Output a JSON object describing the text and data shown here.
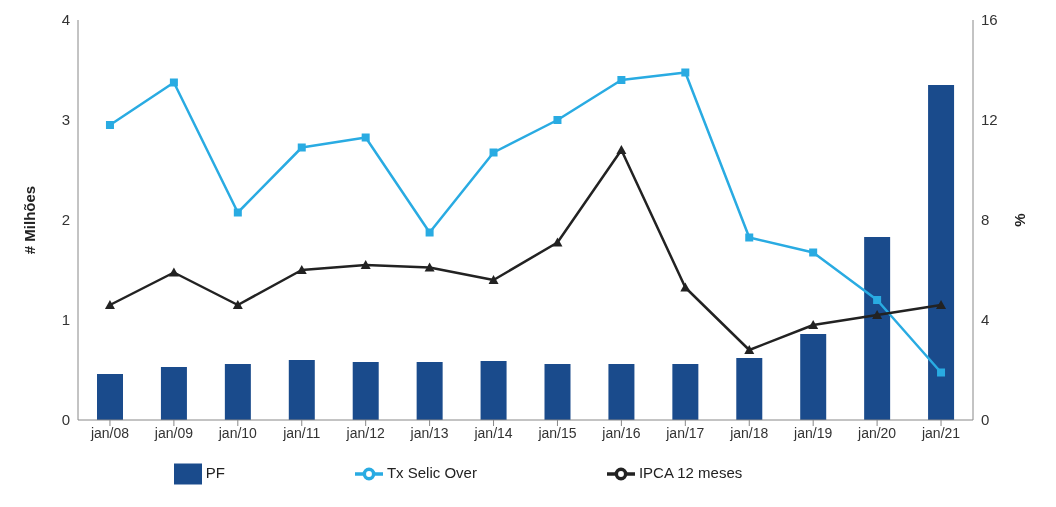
{
  "chart_data": {
    "type": "bar",
    "categories": [
      "jan/08",
      "jan/09",
      "jan/10",
      "jan/11",
      "jan/12",
      "jan/13",
      "jan/14",
      "jan/15",
      "jan/16",
      "jan/17",
      "jan/18",
      "jan/19",
      "jan/20",
      "jan/21"
    ],
    "ylabel": "# Milhões",
    "y2label": "%",
    "ylim": [
      0,
      4
    ],
    "yticks": [
      0,
      1,
      2,
      3,
      4
    ],
    "y2lim": [
      0,
      16
    ],
    "y2ticks": [
      0,
      4,
      8,
      12,
      16
    ],
    "grid": false,
    "legend": "bottom",
    "series": [
      {
        "name": "PF",
        "color": "#1a4b8c",
        "values": [
          0.46,
          0.53,
          0.56,
          0.6,
          0.58,
          0.58,
          0.59,
          0.56,
          0.56,
          0.56,
          0.62,
          0.86,
          1.83,
          3.35
        ]
      },
      {
        "name": "Tx Selic Over",
        "type": "line",
        "axis": "y2",
        "marker": "square",
        "color": "#29abe2",
        "values": [
          11.8,
          13.5,
          8.3,
          10.9,
          11.3,
          7.5,
          10.7,
          12.0,
          13.6,
          13.9,
          7.3,
          6.7,
          4.8,
          1.9
        ]
      },
      {
        "name": "IPCA 12 meses",
        "type": "line",
        "axis": "y2",
        "marker": "triangle",
        "color": "#222222",
        "values": [
          4.6,
          5.9,
          4.6,
          6.0,
          6.2,
          6.1,
          5.6,
          7.1,
          10.8,
          5.3,
          2.8,
          3.8,
          4.2,
          4.6
        ]
      }
    ]
  }
}
